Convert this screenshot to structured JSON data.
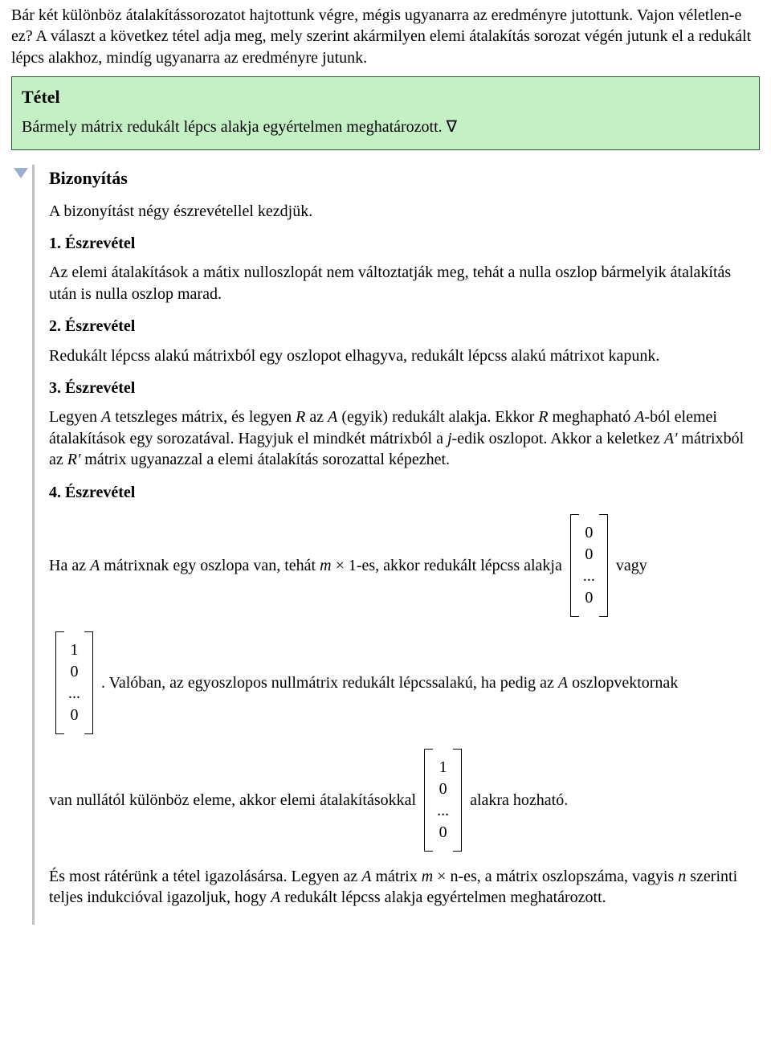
{
  "intro": "Bár két különböz átalakítássorozatot hajtottunk végre, mégis ugyanarra az eredményre jutottunk. Vajon véletlen-e ez? A választ a következ tétel adja meg, mely szerint akármilyen elemi átalakítás sorozat végén jutunk el a redukált lépcs alakhoz, mindíg ugyanarra az eredményre jutunk.",
  "theorem": {
    "title": "Tétel",
    "body": "Bármely mátrix redukált lépcs alakja egyértelmen meghatározott. ∇"
  },
  "proof": {
    "title": "Bizonyítás",
    "lead": "A bizonyítást négy észrevétellel kezdjük.",
    "obs1_head": "1. Észrevétel",
    "obs1_body": "Az elemi átalakítások a mátix nulloszlopát nem változtatják meg, tehát a nulla oszlop bármelyik átalakítás után is nulla oszlop marad.",
    "obs2_head": "2. Észrevétel",
    "obs2_body": "Redukált lépcss alakú mátrixból egy oszlopot elhagyva, redukált lépcss alakú mátrixot kapunk.",
    "obs3_head": "3. Észrevétel",
    "obs3_body_1": "Legyen ",
    "obs3_body_2": " tetszleges mátrix, és legyen ",
    "obs3_body_3": " az ",
    "obs3_body_4": " (egyik) redukált alakja. Ekkor ",
    "obs3_body_5": " meghapható ",
    "obs3_body_6": "-ból elemei átalakítások egy sorozatával. Hagyjuk el mindkét mátrixból a ",
    "obs3_body_7": "-edik oszlopot. Akkor a keletkez ",
    "obs3_body_8": " mátrixból az ",
    "obs3_body_9": " mátrix ugyanazzal a elemi átalakítás sorozattal képezhet.",
    "obs4_head": "4. Észrevétel",
    "line1_a": "Ha az ",
    "line1_b": " mátrixnak egy oszlopa van, tehát ",
    "line1_c": " × 1-es, akkor redukált lépcss alakja ",
    "line1_d": " vagy",
    "line2_a": ". Valóban, az egyoszlopos nullmátrix redukált lépcssalakú, ha pedig az ",
    "line2_b": " oszlopvektornak",
    "line3_a": "van nullától különböz eleme, akkor elemi átalakításokkal ",
    "line3_b": " alakra hozható.",
    "final_a": "És most rátérünk a tétel igazolásársa. Legyen az ",
    "final_b": " mátrix ",
    "final_c": " × n-es, a mátrix oszlopszáma, vagyis ",
    "final_d": " szerinti teljes indukcióval igazoljuk, hogy ",
    "final_e": " redukált lépcss alakja egyértelmen meghatározott.",
    "sym": {
      "A": "A",
      "R": "R",
      "j": "j",
      "Ap": "A'",
      "Rp": "R'",
      "m": "m",
      "n": "n"
    },
    "vec_zero": [
      "0",
      "0",
      "...",
      "0"
    ],
    "vec_one": [
      "1",
      "0",
      "...",
      "0"
    ]
  },
  "style": {
    "page_bg": "#ffffff",
    "box_bg": "#c5f0c5",
    "box_border": "#2c5f2c",
    "proof_rule": "#c0c0c0",
    "disclosure_fill": "#9aaed0",
    "font_family": "Times New Roman",
    "base_font_size_pt": 15
  }
}
